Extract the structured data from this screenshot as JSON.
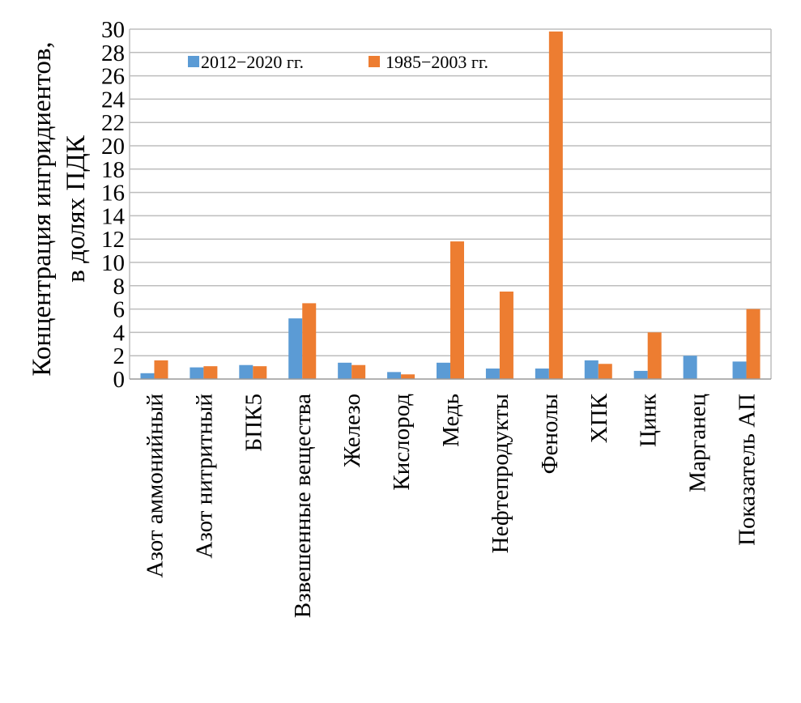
{
  "chart_data": {
    "type": "bar",
    "ylabel_line1": "Концентрация ингридиентов,",
    "ylabel_line2": "в долях ПДК",
    "ylim": [
      0,
      30
    ],
    "yticks": [
      0,
      2,
      4,
      6,
      8,
      10,
      12,
      14,
      16,
      18,
      20,
      22,
      24,
      26,
      28,
      30
    ],
    "grid": true,
    "legend_position": "top-left",
    "categories": [
      "Азот аммонийный",
      "Азот нитритный",
      "БПК5",
      "Взвешенные вещества",
      "Железо",
      "Кислород",
      "Медь",
      "Нефтепродукты",
      "Фенолы",
      "ХПК",
      "Цинк",
      "Марганец",
      "Показатель АП"
    ],
    "series": [
      {
        "name": "2012−2020 гг.",
        "color": "#5b9bd5",
        "values": [
          0.5,
          1.0,
          1.2,
          5.2,
          1.4,
          0.6,
          1.4,
          0.9,
          0.9,
          1.6,
          0.7,
          2.0,
          1.5
        ]
      },
      {
        "name": "1985−2003 гг.",
        "color": "#ed7d31",
        "values": [
          1.6,
          1.1,
          1.1,
          6.5,
          1.2,
          0.4,
          11.8,
          7.5,
          29.8,
          1.3,
          4.0,
          0,
          6.0
        ]
      }
    ]
  }
}
